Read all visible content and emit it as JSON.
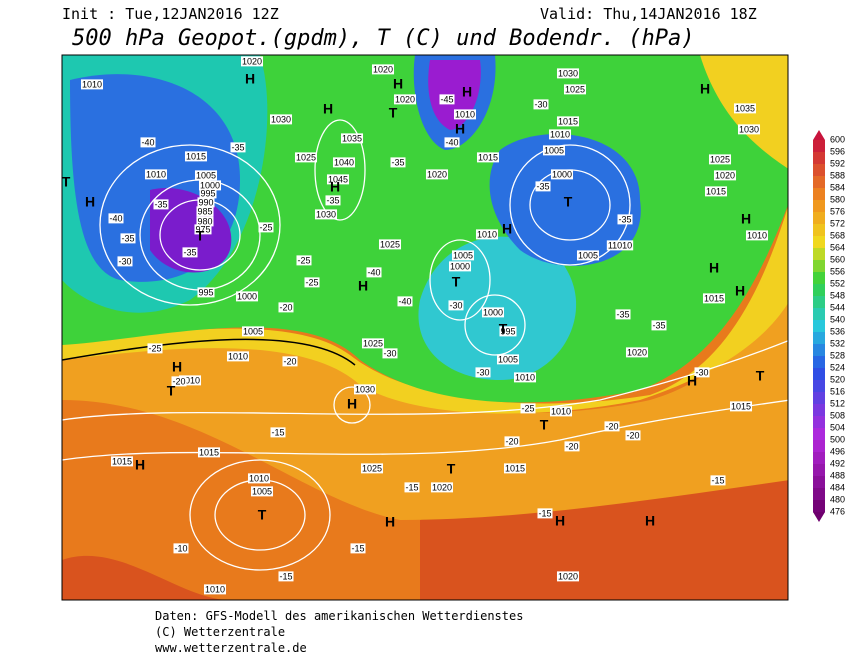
{
  "header": {
    "init": "Init : Tue,12JAN2016 12Z",
    "valid": "Valid: Thu,14JAN2016 18Z",
    "title": "500 hPa Geopot.(gpdm), T (C) und Bodendr. (hPa)"
  },
  "map": {
    "pressure_labels": [
      1010,
      1015,
      1010,
      1005,
      1000,
      995,
      990,
      985,
      980,
      975,
      995,
      1000,
      1005,
      1010,
      1010,
      1020,
      1030,
      1025,
      1040,
      1035,
      1045,
      1030,
      1025,
      1020,
      1020,
      1010,
      1015,
      1020,
      1010,
      1005,
      1000,
      1000,
      995,
      1005,
      1010,
      1025,
      1030,
      1030,
      1025,
      1015,
      1010,
      1005,
      1000,
      1005,
      11010,
      1025,
      1020,
      1015,
      1035,
      1030,
      1010,
      1015,
      1020,
      1015,
      1010,
      1015,
      1025,
      1020,
      1015,
      1010,
      1005,
      1020,
      1010,
      1015
    ],
    "temperature_labels": [
      -45,
      -40,
      -40,
      -35,
      -30,
      -40,
      -35,
      -35,
      -35,
      -30,
      -25,
      -25,
      -25,
      -35,
      -35,
      -40,
      -40,
      -35,
      -35,
      -35,
      -30,
      -30,
      -25,
      -25,
      -20,
      -20,
      -20,
      -20,
      -20,
      -20,
      -20,
      -15,
      -15,
      -15,
      -15,
      -10,
      -15,
      -15,
      -30,
      -30,
      -35
    ],
    "centers": [
      "H",
      "H",
      "H",
      "H",
      "T",
      "H",
      "H",
      "T",
      "T",
      "H",
      "H",
      "T",
      "H",
      "T",
      "H",
      "H",
      "H",
      "H",
      "T",
      "H",
      "H",
      "T",
      "T",
      "H",
      "T",
      "T",
      "H",
      "H",
      "H",
      "H",
      "T"
    ]
  },
  "legend": {
    "levels": [
      600,
      596,
      592,
      588,
      584,
      580,
      576,
      572,
      568,
      564,
      560,
      556,
      552,
      548,
      544,
      540,
      536,
      532,
      528,
      524,
      520,
      516,
      512,
      508,
      504,
      500,
      496,
      492,
      488,
      484,
      480,
      476
    ]
  },
  "footer": {
    "line1": "Daten: GFS-Modell des amerikanischen Wetterdienstes",
    "line2": "(C) Wetterzentrale",
    "line3": "www.wetterzentrale.de"
  }
}
